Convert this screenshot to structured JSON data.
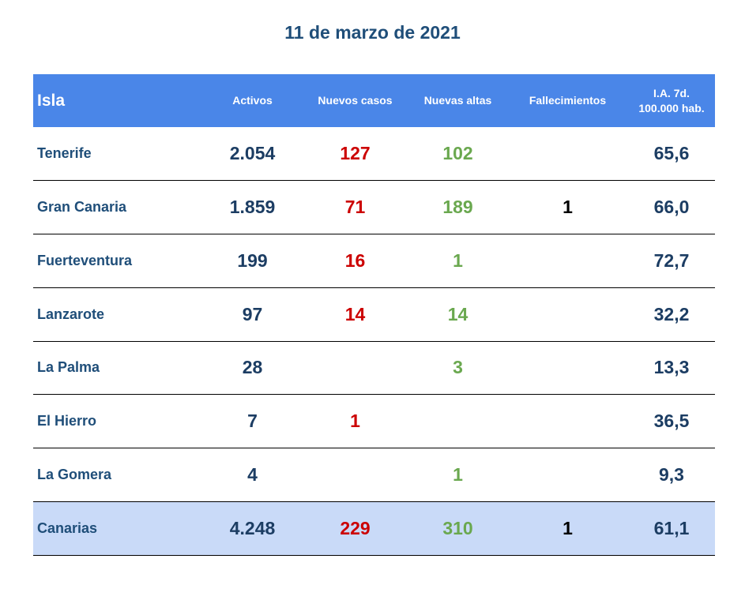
{
  "title": "11 de marzo de 2021",
  "headers": {
    "isla": "Isla",
    "activos": "Activos",
    "nuevos_casos": "Nuevos casos",
    "nuevas_altas": "Nuevas altas",
    "fallecimientos": "Fallecimientos",
    "ia_line1": "I.A. 7d.",
    "ia_line2": "100.000 hab."
  },
  "colors": {
    "header_bg": "#4a86e8",
    "total_bg": "#c9daf8",
    "nuevos_casos": "#cc0000",
    "nuevas_altas": "#6aa84f",
    "text_dark_blue": "#1f4e79"
  },
  "rows": [
    {
      "isla": "Tenerife",
      "activos": "2.054",
      "nuevos_casos": "127",
      "nuevas_altas": "102",
      "fallecimientos": "",
      "ia": "65,6"
    },
    {
      "isla": "Gran Canaria",
      "activos": "1.859",
      "nuevos_casos": "71",
      "nuevas_altas": "189",
      "fallecimientos": "1",
      "ia": "66,0"
    },
    {
      "isla": "Fuerteventura",
      "activos": "199",
      "nuevos_casos": "16",
      "nuevas_altas": "1",
      "fallecimientos": "",
      "ia": "72,7"
    },
    {
      "isla": "Lanzarote",
      "activos": "97",
      "nuevos_casos": "14",
      "nuevas_altas": "14",
      "fallecimientos": "",
      "ia": "32,2"
    },
    {
      "isla": "La Palma",
      "activos": "28",
      "nuevos_casos": "",
      "nuevas_altas": "3",
      "fallecimientos": "",
      "ia": "13,3"
    },
    {
      "isla": "El Hierro",
      "activos": "7",
      "nuevos_casos": "1",
      "nuevas_altas": "",
      "fallecimientos": "",
      "ia": "36,5"
    },
    {
      "isla": "La Gomera",
      "activos": "4",
      "nuevos_casos": "",
      "nuevas_altas": "1",
      "fallecimientos": "",
      "ia": "9,3"
    },
    {
      "isla": "Canarias",
      "activos": "4.248",
      "nuevos_casos": "229",
      "nuevas_altas": "310",
      "fallecimientos": "1",
      "ia": "61,1"
    }
  ]
}
